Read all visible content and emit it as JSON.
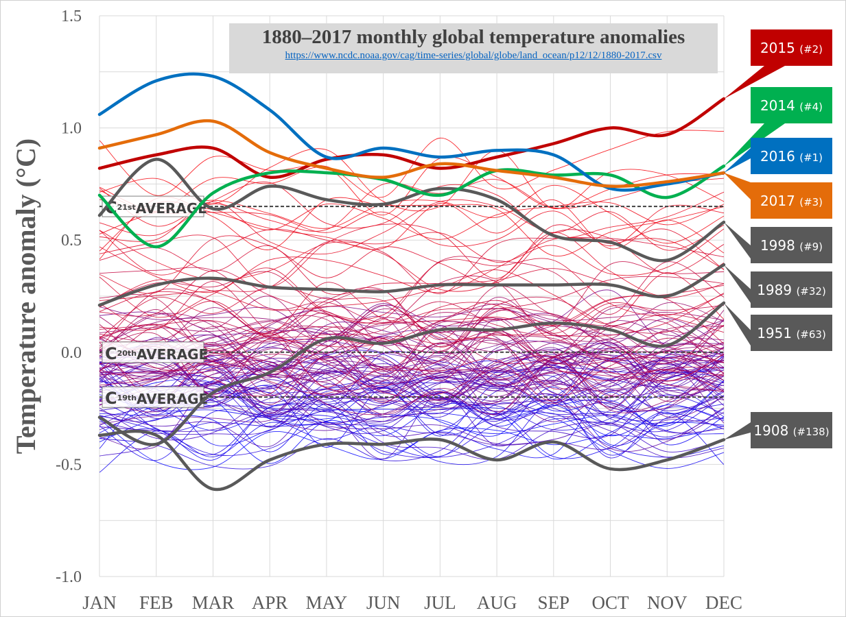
{
  "chart_data": {
    "type": "line",
    "title": "1880–2017 monthly global temperature anomalies",
    "source_link": "https://www.ncdc.noaa.gov/cag/time-series/global/globe/land_ocean/p12/12/1880-2017.csv",
    "ylabel": "Temperature anomaly (°C)",
    "xlabel": "",
    "categories": [
      "JAN",
      "FEB",
      "MAR",
      "APR",
      "MAY",
      "JUN",
      "JUL",
      "AUG",
      "SEP",
      "OCT",
      "NOV",
      "DEC"
    ],
    "ylim": [
      -1.0,
      1.5
    ],
    "yticks": [
      "-1.0",
      "-0.5",
      "0.0",
      "0.5",
      "1.0",
      "1.5"
    ],
    "grid": true,
    "background_series": {
      "years_from": 1880,
      "years_to": 2017,
      "color_oldest": "#0000ff",
      "color_newest": "#ff0000"
    },
    "averages": [
      {
        "label_c": "C",
        "label_sup": "21st",
        "label": "AVERAGE",
        "value": 0.65
      },
      {
        "label_c": "C",
        "label_sup": "20th",
        "label": "AVERAGE",
        "value": 0.0
      },
      {
        "label_c": "C",
        "label_sup": "19th",
        "label": "AVERAGE",
        "value": -0.2
      }
    ],
    "series": [
      {
        "name": "2015",
        "rank": "(#2)",
        "color": "#c00000",
        "values": [
          0.82,
          0.88,
          0.91,
          0.78,
          0.86,
          0.88,
          0.82,
          0.87,
          0.93,
          1.0,
          0.97,
          1.13
        ]
      },
      {
        "name": "2014",
        "rank": "(#4)",
        "color": "#00b050",
        "values": [
          0.7,
          0.47,
          0.71,
          0.8,
          0.8,
          0.77,
          0.7,
          0.81,
          0.79,
          0.79,
          0.69,
          0.83
        ]
      },
      {
        "name": "2016",
        "rank": "(#1)",
        "color": "#0070c0",
        "values": [
          1.06,
          1.21,
          1.23,
          1.08,
          0.87,
          0.91,
          0.87,
          0.9,
          0.88,
          0.73,
          0.75,
          0.8
        ]
      },
      {
        "name": "2017",
        "rank": "(#3)",
        "color": "#e46c0a",
        "values": [
          0.91,
          0.97,
          1.03,
          0.89,
          0.82,
          0.78,
          0.84,
          0.81,
          0.78,
          0.74,
          0.76,
          0.8
        ]
      },
      {
        "name": "1998",
        "rank": "(#9)",
        "color": "#595959",
        "values": [
          0.61,
          0.86,
          0.64,
          0.74,
          0.68,
          0.66,
          0.73,
          0.68,
          0.52,
          0.49,
          0.41,
          0.58
        ]
      },
      {
        "name": "1989",
        "rank": "(#32)",
        "color": "#595959",
        "values": [
          0.21,
          0.3,
          0.33,
          0.29,
          0.28,
          0.27,
          0.3,
          0.3,
          0.3,
          0.3,
          0.25,
          0.39
        ]
      },
      {
        "name": "1951",
        "rank": "(#63)",
        "color": "#595959",
        "values": [
          -0.29,
          -0.41,
          -0.18,
          -0.09,
          0.06,
          0.04,
          0.1,
          0.1,
          0.13,
          0.1,
          0.03,
          0.22
        ]
      },
      {
        "name": "1908",
        "rank": "(#138)",
        "color": "#595959",
        "values": [
          -0.37,
          -0.37,
          -0.61,
          -0.48,
          -0.41,
          -0.41,
          -0.39,
          -0.48,
          -0.4,
          -0.52,
          -0.48,
          -0.39
        ]
      }
    ]
  }
}
